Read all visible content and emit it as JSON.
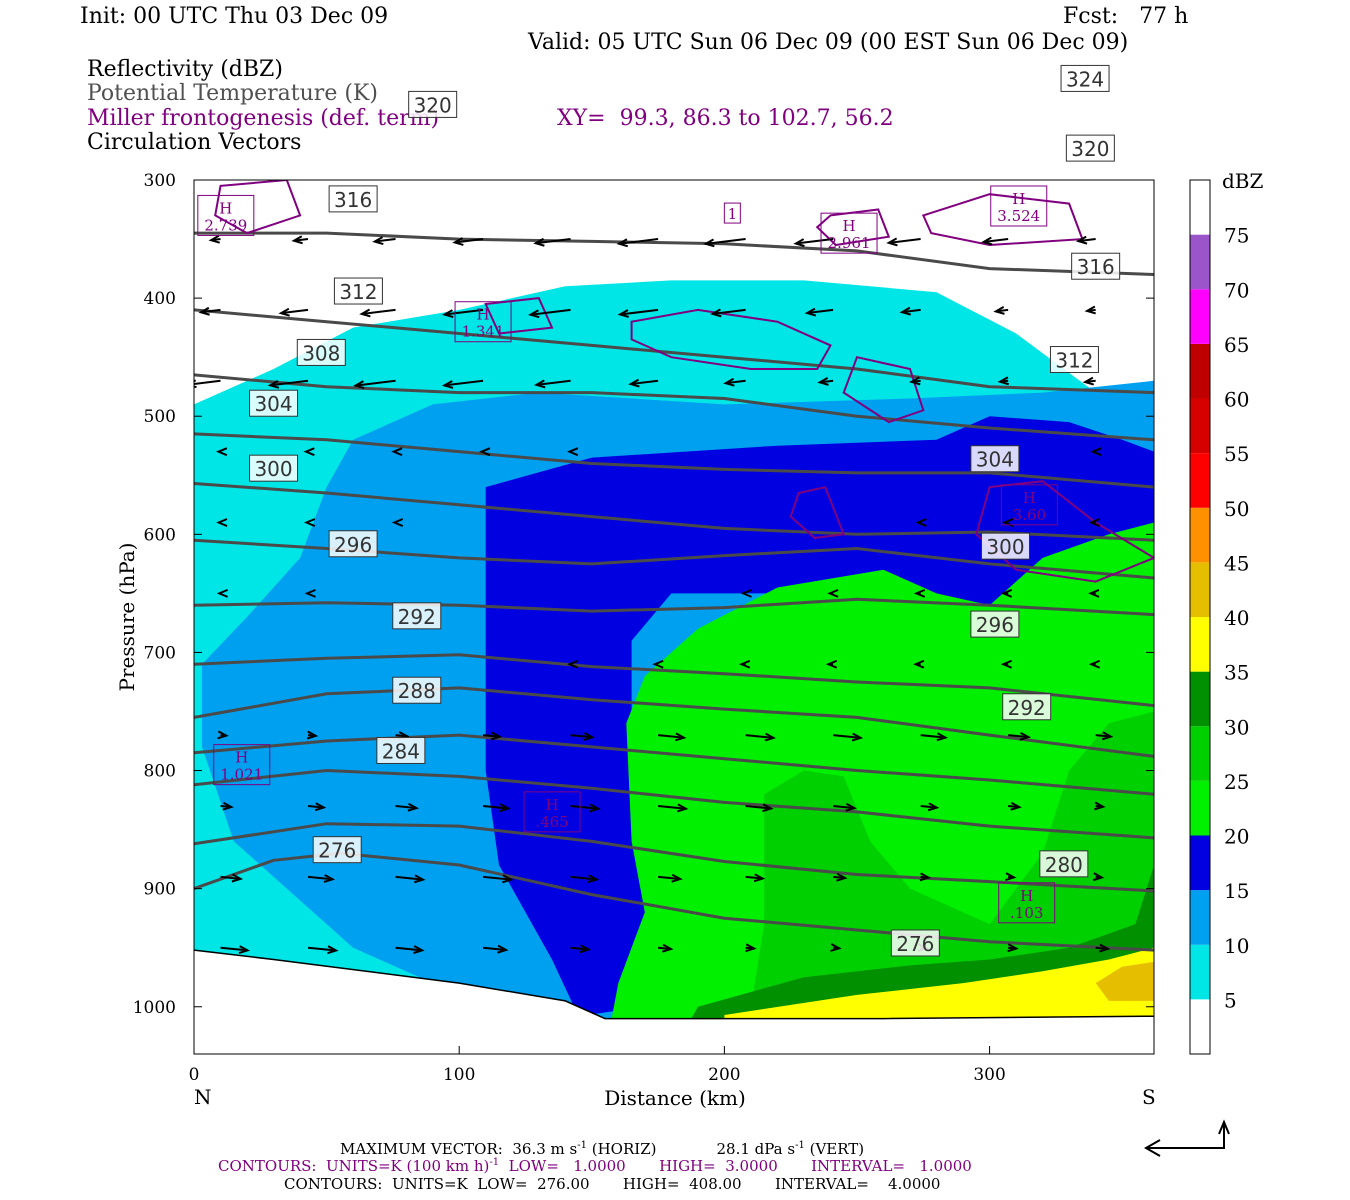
{
  "header": {
    "init": "Init: 00 UTC Thu 03 Dec 09",
    "fcst": "Fcst:   77 h",
    "valid": "Valid: 05 UTC Sun 06 Dec 09 (00 EST Sun 06 Dec 09)"
  },
  "fields": {
    "reflectivity": "Reflectivity (dBZ)",
    "theta": "Potential Temperature (K)",
    "miller": "Miller frontogenesis (def. term)",
    "xy": "XY=  99.3, 86.3 to 102.7, 56.2",
    "vectors": "Circulation Vectors"
  },
  "footer": {
    "max_vector": "MAXIMUM VECTOR:  36.3 m s",
    "max_vector_exp": "-1",
    "max_vector_h": " (HORIZ)",
    "max_vector_vert": "28.1 dPa s",
    "max_vector_vert_exp": "-1",
    "max_vector_v": " (VERT)",
    "contours_purple_a": "CONTOURS:  UNITS=K (100 km h)",
    "contours_purple_exp": "-1",
    "contours_purple_b": "  LOW=   1.0000       HIGH=  3.0000       INTERVAL=   1.0000",
    "contours_grey": "CONTOURS:  UNITS=K  LOW=  276.00       HIGH=  408.00       INTERVAL=    4.0000"
  },
  "colors": {
    "purple": "#800080",
    "theta": "#4a4a4a",
    "scale": [
      {
        "label": "5",
        "color": "#00e6e6"
      },
      {
        "label": "10",
        "color": "#00a0f0"
      },
      {
        "label": "15",
        "color": "#0000e0"
      },
      {
        "label": "20",
        "color": "#00f000"
      },
      {
        "label": "25",
        "color": "#00d000"
      },
      {
        "label": "30",
        "color": "#009000"
      },
      {
        "label": "35",
        "color": "#ffff00"
      },
      {
        "label": "40",
        "color": "#e6be00"
      },
      {
        "label": "45",
        "color": "#ff9000"
      },
      {
        "label": "50",
        "color": "#ff0000"
      },
      {
        "label": "55",
        "color": "#d60000"
      },
      {
        "label": "60",
        "color": "#c00000"
      },
      {
        "label": "65",
        "color": "#ff00ff"
      },
      {
        "label": "70",
        "color": "#9955c9"
      },
      {
        "label": "75",
        "color": "#ffffff"
      }
    ]
  },
  "chart_data": {
    "type": "cross-section",
    "xlabel": "Distance (km)",
    "ylabel": "Pressure (hPa)",
    "xlim": [
      0,
      362
    ],
    "ylim": [
      1040,
      300
    ],
    "x_ticks": [
      "0",
      "100",
      "200",
      "300"
    ],
    "y_ticks": [
      "300",
      "400",
      "500",
      "600",
      "700",
      "800",
      "900",
      "1000"
    ],
    "left_end_label": "N",
    "right_end_label": "S",
    "colorbar_title": "dBZ",
    "theta_contours": [
      {
        "label": "276",
        "points": [
          [
            0,
            900
          ],
          [
            30,
            876
          ],
          [
            55,
            870
          ],
          [
            100,
            880
          ],
          [
            150,
            905
          ],
          [
            200,
            925
          ],
          [
            250,
            935
          ],
          [
            300,
            945
          ],
          [
            362,
            952
          ]
        ],
        "labels_at": [
          [
            54,
            867
          ],
          [
            272,
            946
          ]
        ]
      },
      {
        "label": "280",
        "points": [
          [
            0,
            862
          ],
          [
            50,
            845
          ],
          [
            100,
            847
          ],
          [
            150,
            860
          ],
          [
            200,
            877
          ],
          [
            250,
            888
          ],
          [
            300,
            894
          ],
          [
            362,
            902
          ]
        ],
        "labels_at": [
          [
            328,
            879
          ]
        ]
      },
      {
        "label": "284",
        "points": [
          [
            0,
            812
          ],
          [
            50,
            800
          ],
          [
            100,
            805
          ],
          [
            150,
            815
          ],
          [
            200,
            827
          ],
          [
            250,
            835
          ],
          [
            300,
            847
          ],
          [
            362,
            857
          ]
        ],
        "labels_at": [
          [
            78,
            783
          ]
        ]
      },
      {
        "label": "288",
        "points": [
          [
            0,
            785
          ],
          [
            50,
            775
          ],
          [
            100,
            770
          ],
          [
            150,
            780
          ],
          [
            200,
            790
          ],
          [
            250,
            800
          ],
          [
            300,
            808
          ],
          [
            362,
            820
          ]
        ],
        "labels_at": [
          [
            84,
            732
          ]
        ]
      },
      {
        "label": "292",
        "points": [
          [
            0,
            755
          ],
          [
            50,
            735
          ],
          [
            100,
            730
          ],
          [
            150,
            740
          ],
          [
            200,
            748
          ],
          [
            250,
            755
          ],
          [
            300,
            770
          ],
          [
            362,
            788
          ]
        ],
        "labels_at": [
          [
            84,
            669
          ],
          [
            314,
            746
          ]
        ]
      },
      {
        "label": "296",
        "points": [
          [
            0,
            710
          ],
          [
            50,
            705
          ],
          [
            100,
            702
          ],
          [
            150,
            712
          ],
          [
            200,
            718
          ],
          [
            250,
            725
          ],
          [
            300,
            730
          ],
          [
            362,
            745
          ]
        ],
        "labels_at": [
          [
            60,
            608
          ],
          [
            302,
            676
          ]
        ]
      },
      {
        "label": "300",
        "points": [
          [
            0,
            660
          ],
          [
            50,
            658
          ],
          [
            100,
            660
          ],
          [
            150,
            665
          ],
          [
            200,
            662
          ],
          [
            250,
            655
          ],
          [
            300,
            660
          ],
          [
            362,
            668
          ]
        ],
        "labels_at": [
          [
            30,
            544
          ],
          [
            306,
            610
          ]
        ]
      },
      {
        "label": "304",
        "points": [
          [
            0,
            605
          ],
          [
            50,
            612
          ],
          [
            100,
            620
          ],
          [
            150,
            625
          ],
          [
            200,
            618
          ],
          [
            250,
            612
          ],
          [
            300,
            625
          ],
          [
            362,
            637
          ]
        ],
        "labels_at": [
          [
            30,
            489
          ],
          [
            302,
            536
          ]
        ]
      },
      {
        "label": "308",
        "points": [
          [
            0,
            557
          ],
          [
            50,
            565
          ],
          [
            100,
            575
          ],
          [
            150,
            585
          ],
          [
            200,
            595
          ],
          [
            250,
            600
          ],
          [
            300,
            598
          ],
          [
            362,
            605
          ]
        ],
        "labels_at": [
          [
            48,
            446
          ]
        ]
      },
      {
        "label": "312",
        "points": [
          [
            0,
            515
          ],
          [
            50,
            520
          ],
          [
            100,
            530
          ],
          [
            150,
            540
          ],
          [
            200,
            545
          ],
          [
            250,
            548
          ],
          [
            300,
            548
          ],
          [
            362,
            560
          ]
        ],
        "labels_at": [
          [
            62,
            394
          ],
          [
            332,
            452
          ]
        ]
      },
      {
        "label": "316",
        "points": [
          [
            0,
            465
          ],
          [
            50,
            475
          ],
          [
            100,
            480
          ],
          [
            150,
            480
          ],
          [
            200,
            485
          ],
          [
            250,
            500
          ],
          [
            300,
            510
          ],
          [
            362,
            520
          ]
        ],
        "labels_at": [
          [
            60,
            316
          ],
          [
            340,
            373
          ]
        ]
      },
      {
        "label": "320",
        "points": [
          [
            0,
            410
          ],
          [
            50,
            420
          ],
          [
            100,
            430
          ],
          [
            150,
            440
          ],
          [
            200,
            450
          ],
          [
            250,
            460
          ],
          [
            300,
            475
          ],
          [
            362,
            480
          ]
        ],
        "labels_at": [
          [
            90,
            236
          ],
          [
            338,
            273
          ]
        ]
      },
      {
        "label": "324",
        "points": [
          [
            0,
            345
          ],
          [
            50,
            345
          ],
          [
            100,
            350
          ],
          [
            150,
            352
          ],
          [
            200,
            354
          ],
          [
            250,
            360
          ],
          [
            300,
            375
          ],
          [
            362,
            380
          ]
        ],
        "labels_at": [
          [
            336,
            214
          ]
        ]
      }
    ],
    "miller_labels": [
      {
        "text": "H",
        "value": "2.739"
      },
      {
        "text": "H",
        "value": "1.341"
      },
      {
        "text": "H",
        "value": "2.961"
      },
      {
        "text": "H",
        "value": "3.524"
      },
      {
        "text": "H",
        "value": "3.60"
      },
      {
        "text": "H",
        "value": "1.021"
      },
      {
        "text": "H",
        "value": ".465"
      },
      {
        "text": "H",
        "value": ".103"
      },
      {
        "text": "1",
        "value": ""
      }
    ]
  }
}
